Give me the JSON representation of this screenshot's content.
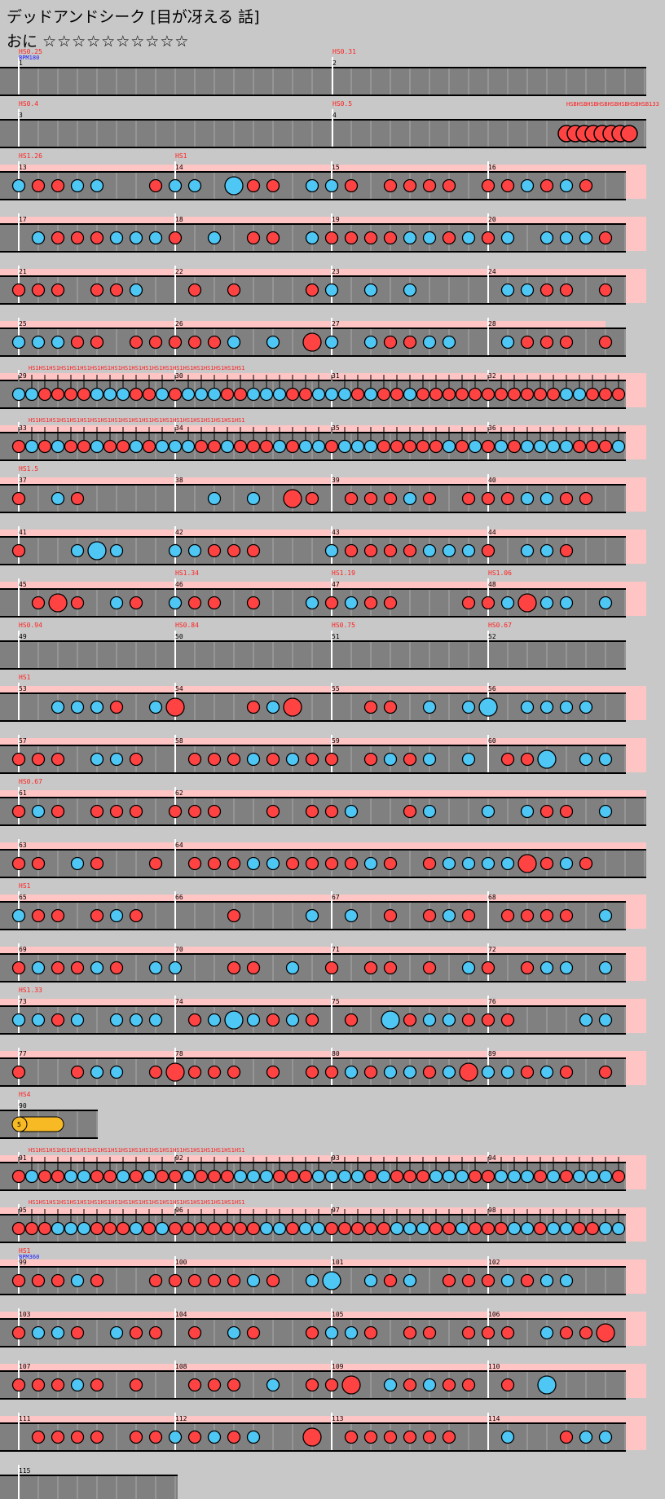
{
  "title": "デッドアンドシーク [目が冴える 話]",
  "difficulty_label": "おに",
  "stars": "☆☆☆☆☆☆☆☆☆☆",
  "colors": {
    "don": "#ff4343",
    "ka": "#4fc7f5",
    "drumroll": "#f7b924",
    "hs": "#ff2020",
    "bpm": "#2020ff",
    "rowband": "#ffc4c4",
    "lane": "#808080"
  },
  "rows": [
    {
      "measures": [
        "1",
        "2"
      ],
      "hs": [
        "HS0.25",
        "HS0.31"
      ],
      "bpm": "BPM180",
      "band": false,
      "empty": true
    },
    {
      "measures": [
        "3",
        "4"
      ],
      "hs": [
        "HS0.4",
        "HS0.5"
      ],
      "band": false,
      "empty": true,
      "burst": "HSBHSBHSBHSBHSBHSBHSBHSB133"
    },
    {
      "measures": [
        "13",
        "14",
        "15",
        "16"
      ],
      "hs": [
        "HS1.26",
        "HS1"
      ]
    },
    {
      "measures": [
        "17",
        "18",
        "19",
        "20"
      ]
    },
    {
      "measures": [
        "21",
        "22",
        "23",
        "24"
      ]
    },
    {
      "measures": [
        "25",
        "26",
        "27",
        "28"
      ]
    },
    {
      "measures": [
        "29",
        "30",
        "31",
        "32"
      ],
      "dense": true
    },
    {
      "measures": [
        "33",
        "34",
        "35",
        "36"
      ],
      "dense": true
    },
    {
      "measures": [
        "37",
        "38",
        "39",
        "40"
      ],
      "hs": [
        "HS1.5"
      ]
    },
    {
      "measures": [
        "41",
        "42",
        "43",
        "44"
      ]
    },
    {
      "measures": [
        "45",
        "46",
        "47",
        "48"
      ],
      "hs": [
        "",
        "HS1.34",
        "HS1.19",
        "HS1.06"
      ]
    },
    {
      "measures": [
        "49",
        "50",
        "51",
        "52"
      ],
      "hs": [
        "HS0.94",
        "HS0.84",
        "HS0.75",
        "HS0.67"
      ],
      "empty": true
    },
    {
      "measures": [
        "53",
        "54",
        "55",
        "56"
      ],
      "hs": [
        "HS1"
      ]
    },
    {
      "measures": [
        "57",
        "58",
        "59",
        "60"
      ]
    },
    {
      "measures": [
        "61",
        "62"
      ],
      "hs": [
        "HS0.67"
      ]
    },
    {
      "measures": [
        "63",
        "64"
      ]
    },
    {
      "measures": [
        "65",
        "66",
        "67",
        "68"
      ],
      "hs": [
        "HS1"
      ]
    },
    {
      "measures": [
        "69",
        "70",
        "71",
        "72"
      ]
    },
    {
      "measures": [
        "73",
        "74",
        "75",
        "76"
      ],
      "hs": [
        "HS1.33"
      ]
    },
    {
      "measures": [
        "77",
        "78",
        "80",
        "89"
      ]
    },
    {
      "measures": [
        "90"
      ],
      "hs": [
        "HS4"
      ],
      "roll": true
    },
    {
      "measures": [
        "91",
        "92",
        "93",
        "94"
      ],
      "dense": true
    },
    {
      "measures": [
        "95",
        "96",
        "97",
        "98"
      ],
      "dense": true
    },
    {
      "measures": [
        "99",
        "100",
        "101",
        "102"
      ],
      "hs": [
        "HS1"
      ],
      "bpm": "BPM360"
    },
    {
      "measures": [
        "103",
        "104",
        "105",
        "106"
      ]
    },
    {
      "measures": [
        "107",
        "108",
        "109",
        "110"
      ]
    },
    {
      "measures": [
        "111",
        "112",
        "113",
        "114"
      ]
    },
    {
      "measures": [
        "115"
      ],
      "empty": true
    }
  ]
}
